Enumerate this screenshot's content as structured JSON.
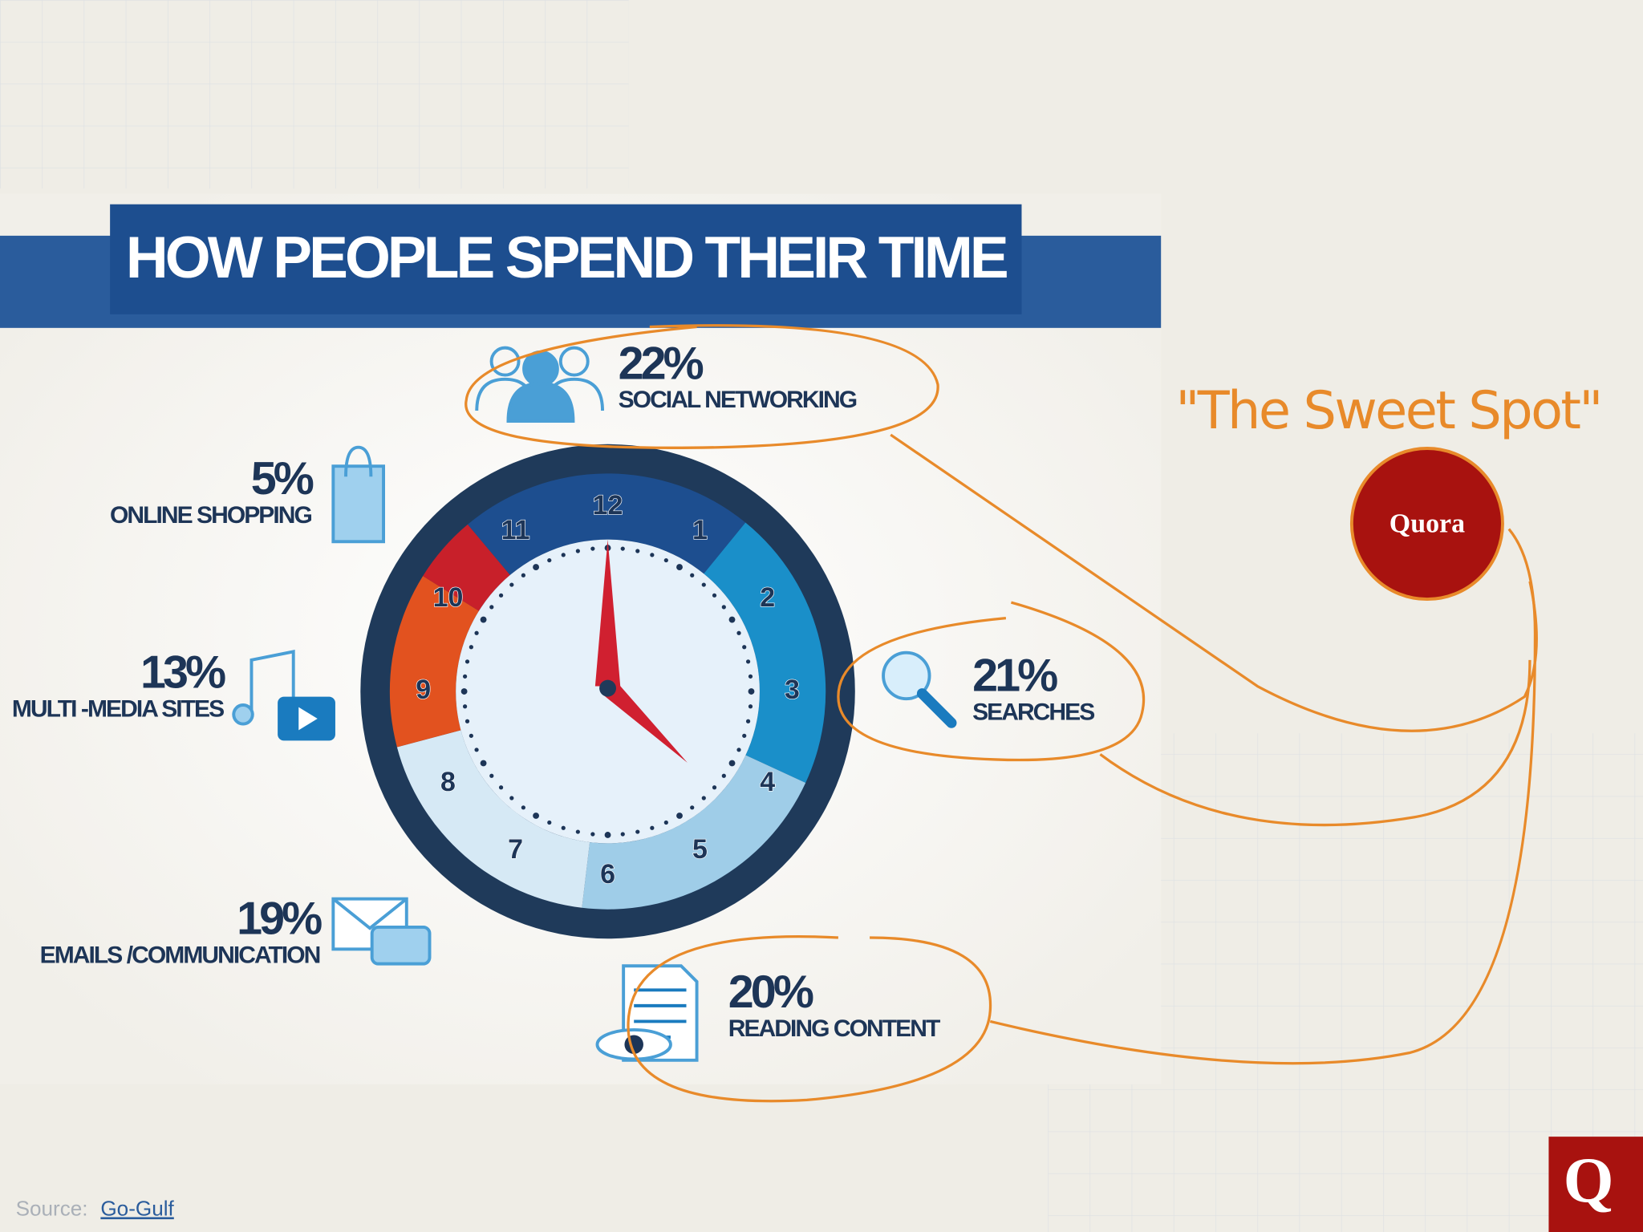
{
  "chart_data": {
    "type": "pie",
    "title": "HOW PEOPLE SPEND THEIR TIME",
    "categories": [
      "SOCIAL NETWORKING",
      "SEARCHES",
      "READING CONTENT",
      "EMAILS /COMMUNICATION",
      "MULTI -MEDIA SITES",
      "ONLINE SHOPPING"
    ],
    "values": [
      22,
      21,
      20,
      19,
      13,
      5
    ],
    "value_labels": [
      "22%",
      "21%",
      "20%",
      "19%",
      "13%",
      "5%"
    ],
    "colors": [
      "#1d4e8f",
      "#1a8fc9",
      "#9fcde8",
      "#d6e9f5",
      "#e2521f",
      "#c8202a"
    ],
    "dial_labels": [
      "12",
      "1",
      "2",
      "3",
      "4",
      "5",
      "6",
      "7",
      "8",
      "9",
      "10",
      "11"
    ]
  },
  "annotation": {
    "text": "\"The Sweet Spot\"",
    "badge": "Quora"
  },
  "source": {
    "label": "Source:",
    "link": "Go-Gulf"
  },
  "logo": "Q"
}
